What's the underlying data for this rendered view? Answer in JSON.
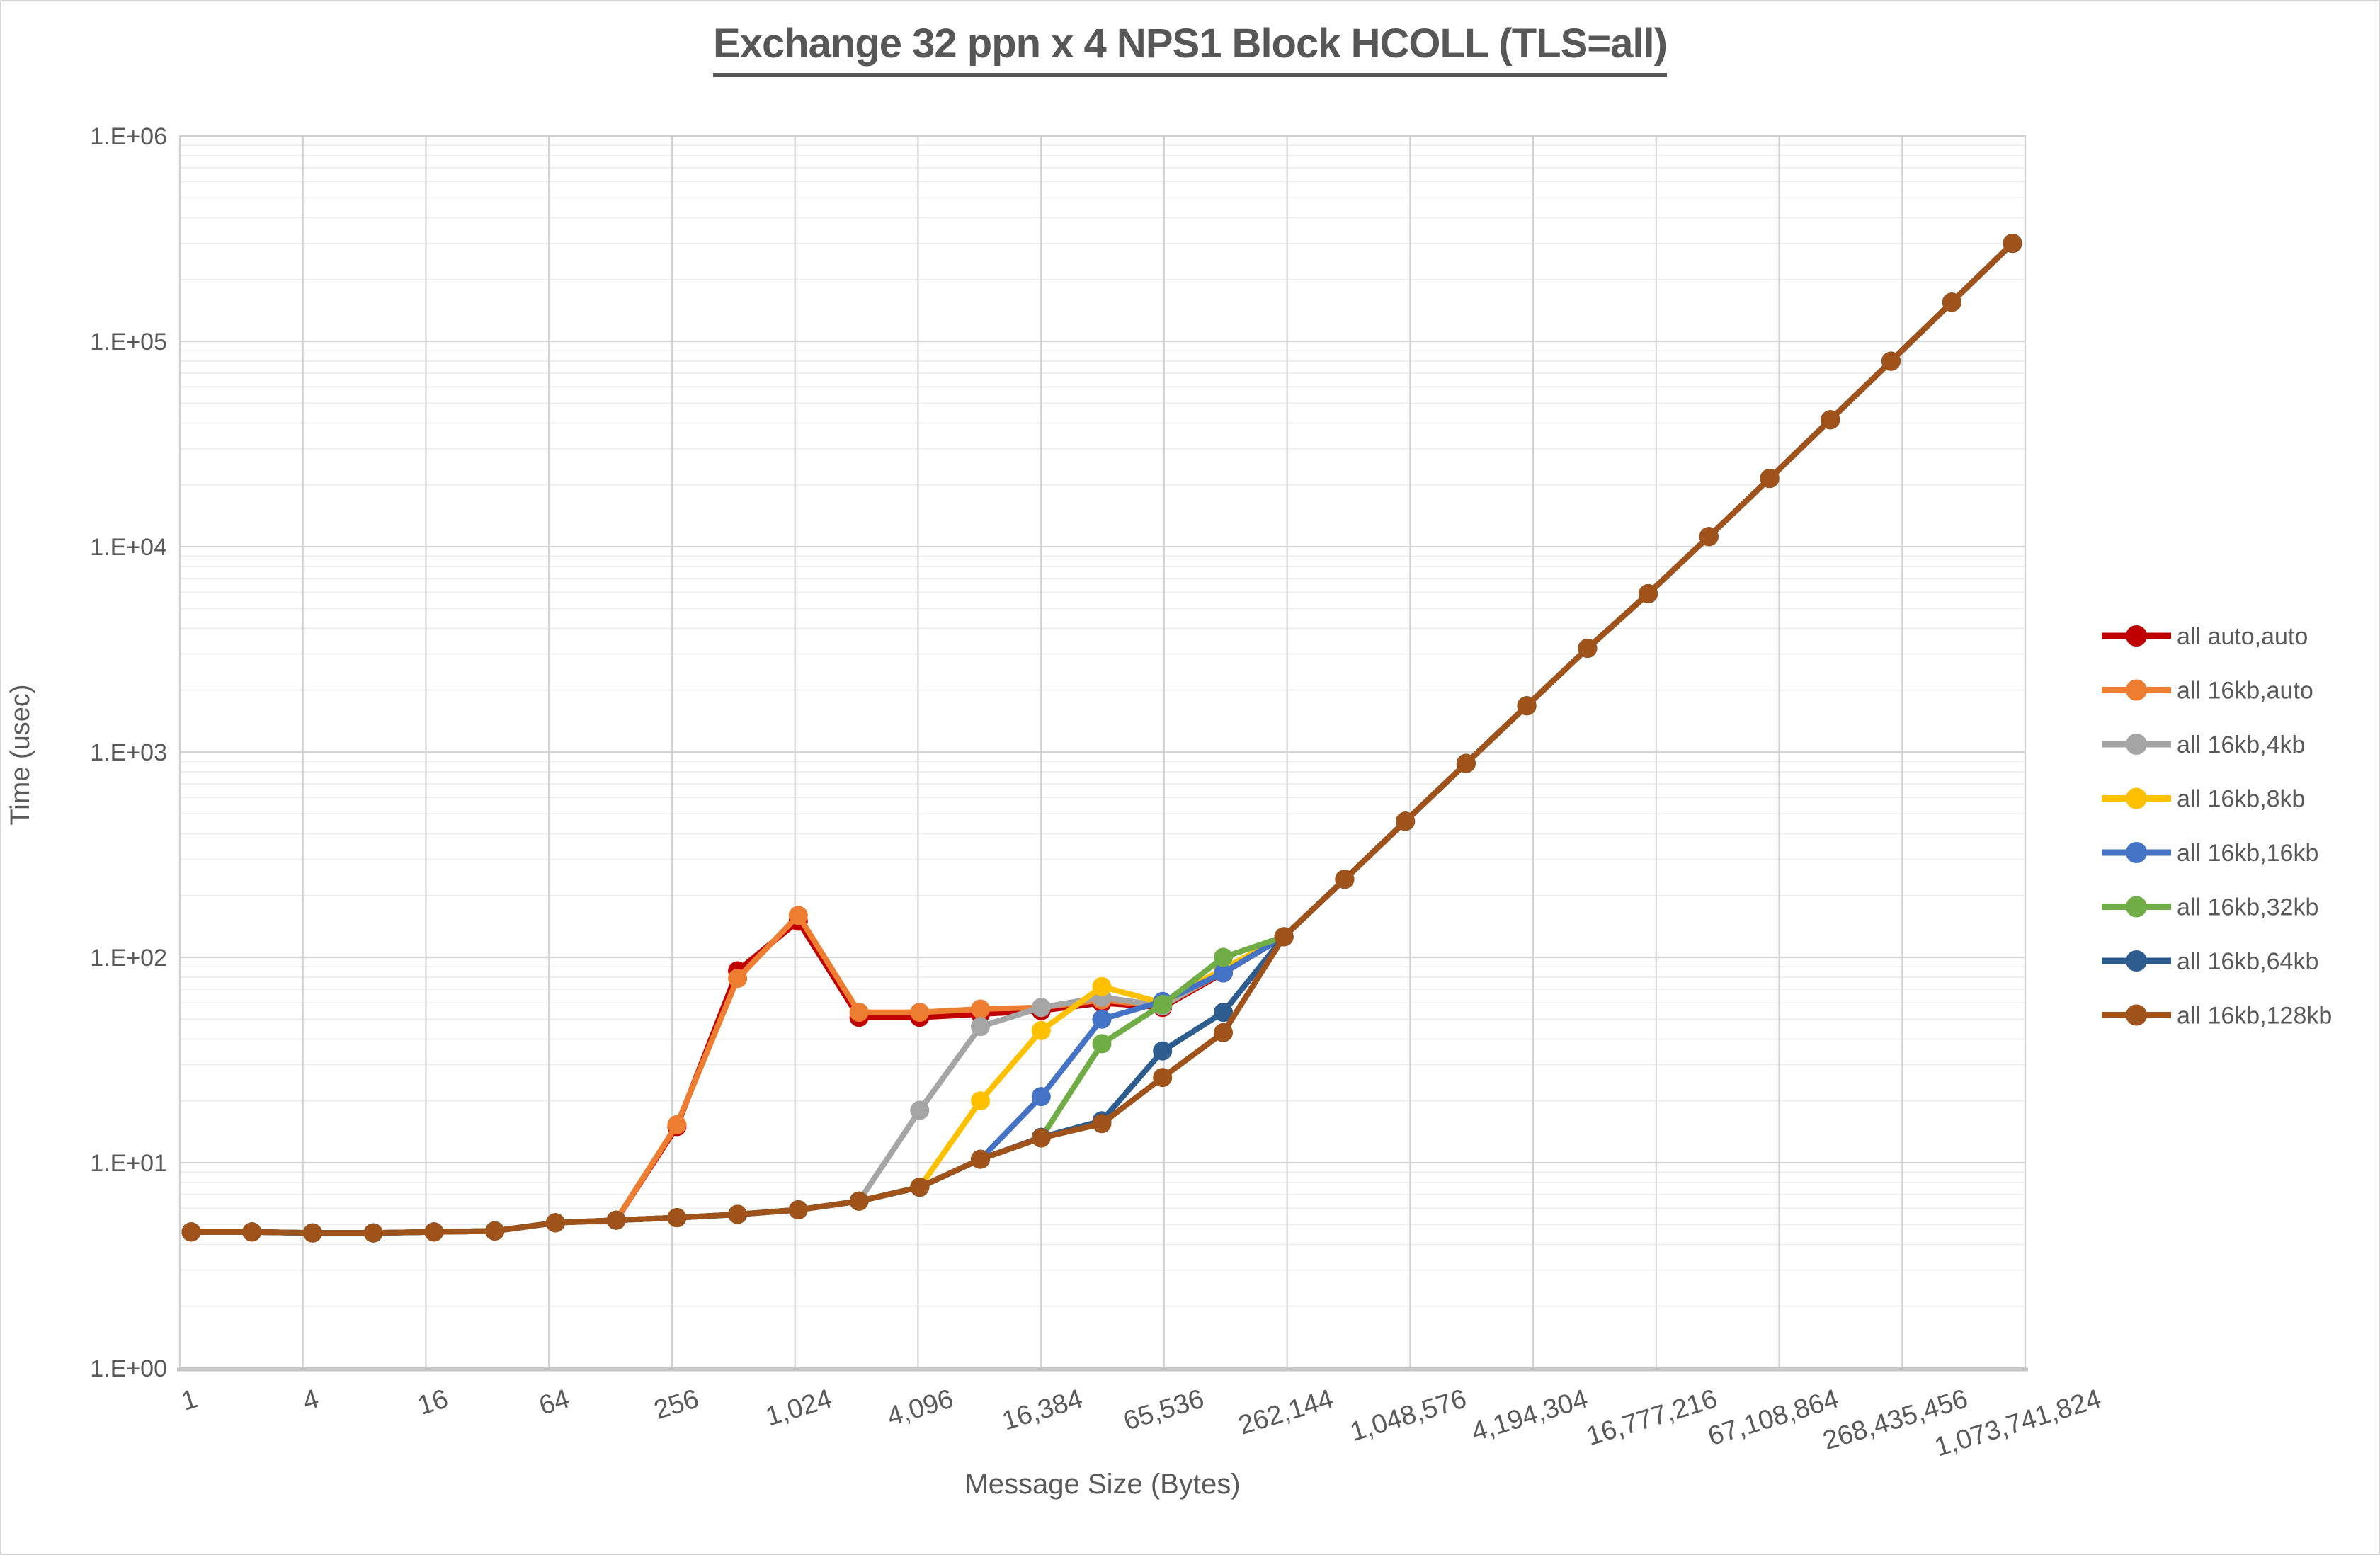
{
  "figure": {
    "background": "#FFFFFF",
    "border_color": "#D6D6D6"
  },
  "chart_data": {
    "type": "line",
    "title": "Exchange 32 ppn x 4 NPS1 Block HCOLL (TLS=all)",
    "xlabel": "Message Size (Bytes)",
    "ylabel": "Time (usec)",
    "x_scale": "log2 categories (powers of 2)",
    "y_scale": "log10",
    "ylim": [
      1,
      1000000
    ],
    "grid": "major and minor log gridlines on",
    "legend_position": "right-middle",
    "axis_text_color": "#595959",
    "gridline_major_color": "#D4D4D4",
    "gridline_minor_color": "#ECECEC",
    "x_values": [
      1,
      2,
      4,
      8,
      16,
      32,
      64,
      128,
      256,
      512,
      1024,
      2048,
      4096,
      8192,
      16384,
      32768,
      65536,
      131072,
      262144,
      524288,
      1048576,
      2097152,
      4194304,
      8388608,
      16777216,
      33554432,
      67108864,
      134217728,
      268435456,
      536870912,
      1073741824
    ],
    "x_tick_labels": [
      "1",
      "4",
      "16",
      "64",
      "256",
      "1,024",
      "4,096",
      "16,384",
      "65,536",
      "262,144",
      "1,048,576",
      "4,194,304",
      "16,777,216",
      "67,108,864",
      "268,435,456",
      "1,073,741,824"
    ],
    "y_tick_labels": [
      "1.E+00",
      "1.E+01",
      "1.E+02",
      "1.E+03",
      "1.E+04",
      "1.E+05",
      "1.E+06"
    ],
    "series": [
      {
        "name": "all auto,auto",
        "color": "#C00000",
        "values": [
          4.6,
          4.6,
          4.55,
          4.55,
          4.6,
          4.65,
          5.1,
          5.25,
          15,
          86,
          150,
          51,
          51,
          53,
          55,
          60,
          57,
          84,
          126,
          240,
          460,
          880,
          1680,
          3200,
          5900,
          11200,
          21500,
          41500,
          80000,
          155000,
          300000
        ]
      },
      {
        "name": "all 16kb,auto",
        "color": "#ED7D31",
        "values": [
          4.6,
          4.6,
          4.55,
          4.55,
          4.6,
          4.65,
          5.1,
          5.25,
          15.3,
          79,
          160,
          54,
          54,
          56,
          57,
          62,
          58,
          85,
          126,
          240,
          460,
          880,
          1680,
          3200,
          5900,
          11200,
          21500,
          41500,
          80000,
          155000,
          300000
        ]
      },
      {
        "name": "all 16kb,4kb",
        "color": "#A5A5A5",
        "values": [
          4.6,
          4.6,
          4.55,
          4.55,
          4.6,
          4.65,
          5.1,
          5.25,
          5.4,
          5.6,
          5.9,
          6.5,
          18,
          46,
          57,
          64,
          58,
          86,
          126,
          240,
          460,
          880,
          1680,
          3200,
          5900,
          11200,
          21500,
          41500,
          80000,
          155000,
          300000
        ]
      },
      {
        "name": "all 16kb,8kb",
        "color": "#FFC000",
        "values": [
          4.6,
          4.6,
          4.55,
          4.55,
          4.6,
          4.65,
          5.1,
          5.25,
          5.4,
          5.6,
          5.9,
          6.5,
          7.6,
          20,
          44,
          72,
          60,
          88,
          126,
          240,
          460,
          880,
          1680,
          3200,
          5900,
          11200,
          21500,
          41500,
          80000,
          155000,
          300000
        ]
      },
      {
        "name": "all 16kb,16kb",
        "color": "#4472C4",
        "values": [
          4.6,
          4.6,
          4.55,
          4.55,
          4.6,
          4.65,
          5.1,
          5.25,
          5.4,
          5.6,
          5.9,
          6.5,
          7.6,
          10.4,
          21,
          50,
          61,
          84,
          126,
          240,
          460,
          880,
          1680,
          3200,
          5900,
          11200,
          21500,
          41500,
          80000,
          155000,
          300000
        ]
      },
      {
        "name": "all 16kb,32kb",
        "color": "#70AD47",
        "values": [
          4.6,
          4.6,
          4.55,
          4.55,
          4.6,
          4.65,
          5.1,
          5.25,
          5.4,
          5.6,
          5.9,
          6.5,
          7.6,
          10.4,
          13.2,
          38,
          59,
          100,
          126,
          240,
          460,
          880,
          1680,
          3200,
          5900,
          11200,
          21500,
          41500,
          80000,
          155000,
          300000
        ]
      },
      {
        "name": "all 16kb,64kb",
        "color": "#2D5C8E",
        "values": [
          4.6,
          4.6,
          4.55,
          4.55,
          4.6,
          4.65,
          5.1,
          5.25,
          5.4,
          5.6,
          5.9,
          6.5,
          7.6,
          10.4,
          13.3,
          16,
          35,
          54,
          126,
          240,
          460,
          880,
          1680,
          3200,
          5900,
          11200,
          21500,
          41500,
          80000,
          155000,
          300000
        ]
      },
      {
        "name": "all 16kb,128kb",
        "color": "#A0521B",
        "values": [
          4.6,
          4.6,
          4.55,
          4.55,
          4.6,
          4.65,
          5.1,
          5.25,
          5.4,
          5.6,
          5.9,
          6.5,
          7.6,
          10.4,
          13.2,
          15.5,
          26,
          43,
          126,
          240,
          460,
          880,
          1680,
          3200,
          5900,
          11200,
          21500,
          41500,
          80000,
          155000,
          300000
        ]
      }
    ]
  }
}
